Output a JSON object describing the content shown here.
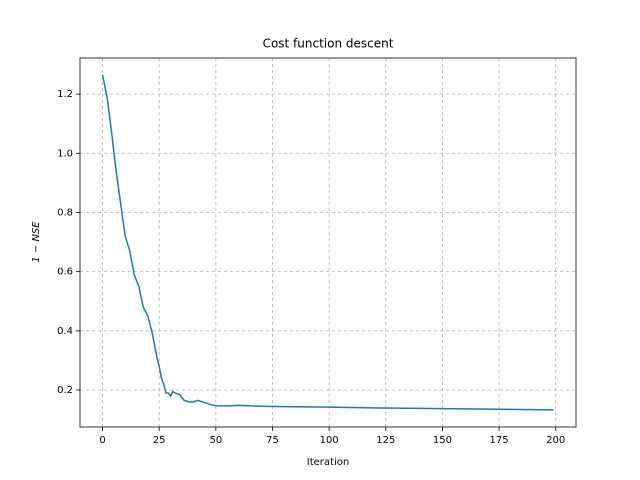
{
  "chart_data": {
    "type": "line",
    "title": "Cost function descent",
    "xlabel": "Iteration",
    "ylabel": "1 − NSE",
    "x": [
      0,
      2,
      4,
      6,
      8,
      10,
      12,
      14,
      16,
      18,
      20,
      22,
      24,
      25,
      26,
      27,
      28,
      29,
      30,
      31,
      32,
      34,
      36,
      38,
      40,
      42,
      44,
      46,
      48,
      50,
      55,
      60,
      70,
      80,
      100,
      125,
      150,
      175,
      199
    ],
    "series": [
      {
        "color": "#1f77b4",
        "values": [
          1.265,
          1.19,
          1.07,
          0.94,
          0.83,
          0.72,
          0.67,
          0.59,
          0.55,
          0.48,
          0.45,
          0.39,
          0.31,
          0.28,
          0.24,
          0.22,
          0.19,
          0.19,
          0.18,
          0.195,
          0.19,
          0.185,
          0.165,
          0.16,
          0.16,
          0.165,
          0.16,
          0.155,
          0.15,
          0.147,
          0.146,
          0.148,
          0.145,
          0.144,
          0.142,
          0.139,
          0.137,
          0.135,
          0.133
        ]
      }
    ],
    "xlim": [
      -9.95,
      208.95
    ],
    "ylim": [
      0.075,
      1.322
    ],
    "xticks": [
      0,
      25,
      50,
      75,
      100,
      125,
      150,
      175,
      200
    ],
    "yticks": [
      0.2,
      0.4,
      0.6,
      0.8,
      1.0,
      1.2
    ],
    "grid": true
  }
}
